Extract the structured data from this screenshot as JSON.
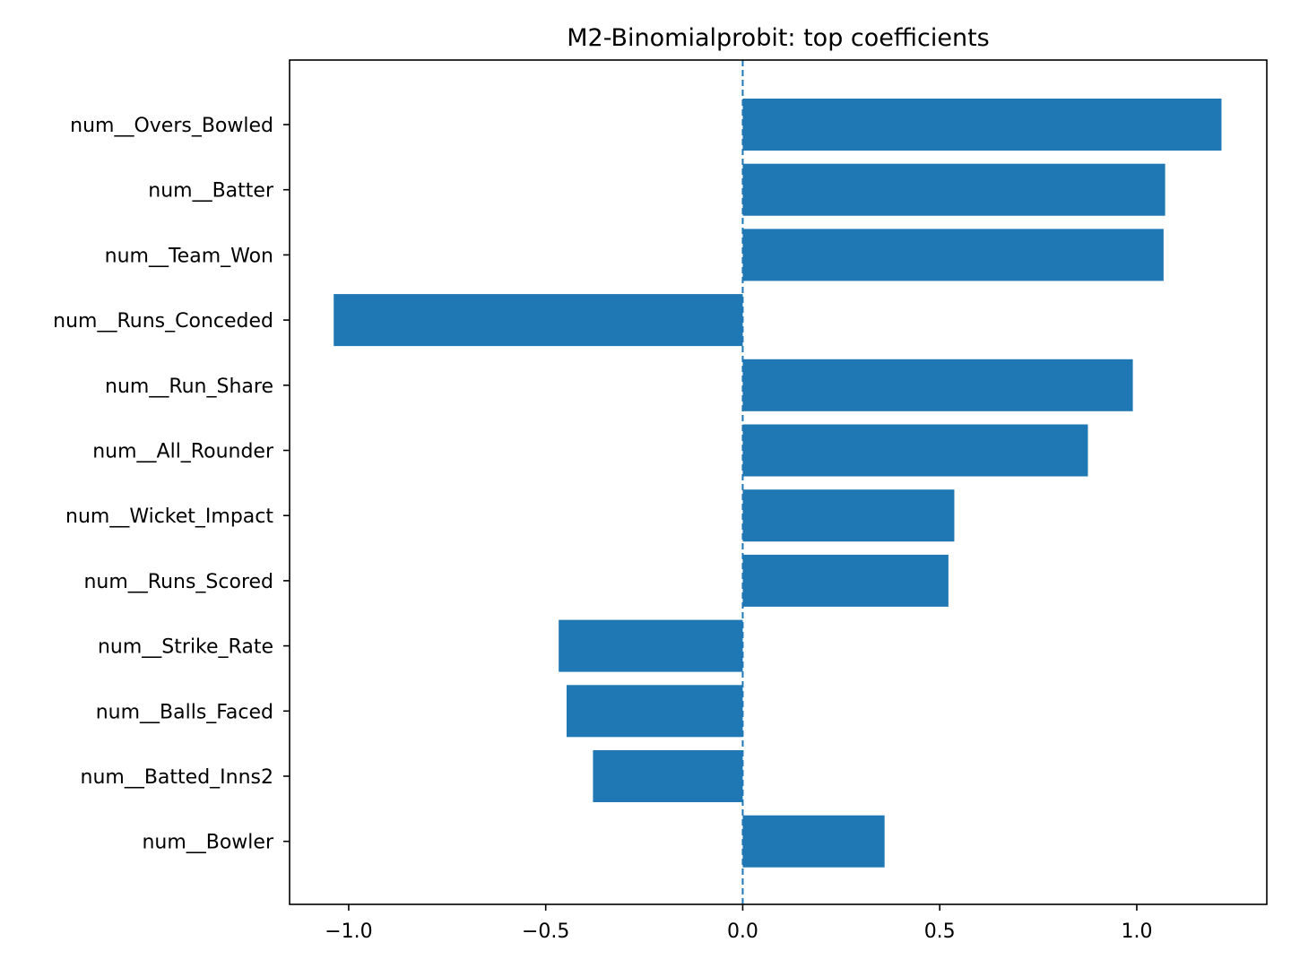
{
  "chart_data": {
    "type": "bar",
    "orientation": "horizontal",
    "title": "M2-Binomialprobit: top coefficients",
    "xlabel": "",
    "ylabel": "",
    "categories": [
      "num__Overs_Bowled",
      "num__Batter",
      "num__Team_Won",
      "num__Runs_Conceded",
      "num__Run_Share",
      "num__All_Rounder",
      "num__Wicket_Impact",
      "num__Runs_Scored",
      "num__Strike_Rate",
      "num__Balls_Faced",
      "num__Batted_Inns2",
      "num__Bowler"
    ],
    "values": [
      1.215,
      1.072,
      1.068,
      -1.038,
      0.99,
      0.876,
      0.537,
      0.522,
      -0.467,
      -0.447,
      -0.38,
      0.36
    ],
    "xlim": [
      -1.15,
      1.33
    ],
    "xticks": [
      -1.0,
      -0.5,
      0.0,
      0.5,
      1.0
    ],
    "xtick_labels": [
      "−1.0",
      "−0.5",
      "0.0",
      "0.5",
      "1.0"
    ],
    "zero_line": {
      "value": 0.0,
      "style": "dashed"
    },
    "grid": false,
    "legend": "none",
    "colors": {
      "bar": "#1f77b4",
      "zero_line": "#1f77b4",
      "axes": "#000000",
      "background": "#ffffff"
    }
  }
}
